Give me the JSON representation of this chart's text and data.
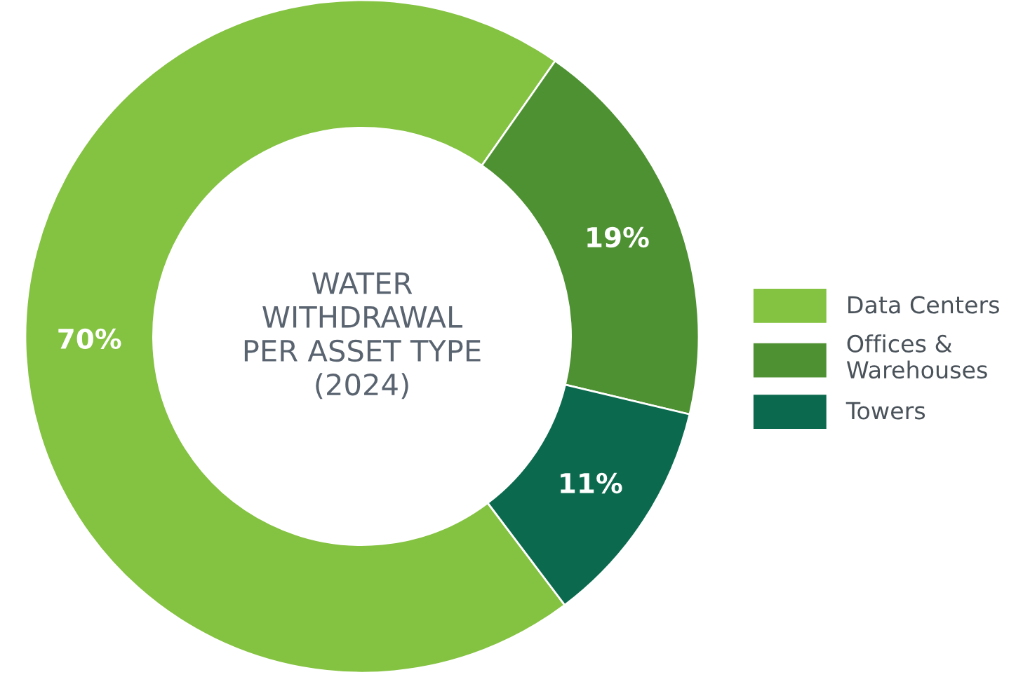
{
  "chart_data": {
    "type": "donut",
    "title": "WATER\nWITHDRAWAL\nPER ASSET TYPE\n(2024)",
    "categories": [
      "Data Centers",
      "Offices &\nWarehouses",
      "Towers"
    ],
    "values": [
      70,
      19,
      11
    ],
    "colors": [
      "#84c241",
      "#4e9132",
      "#0b6a4e"
    ],
    "value_labels": [
      "70%",
      "19%",
      "11%"
    ],
    "legend": "right"
  }
}
